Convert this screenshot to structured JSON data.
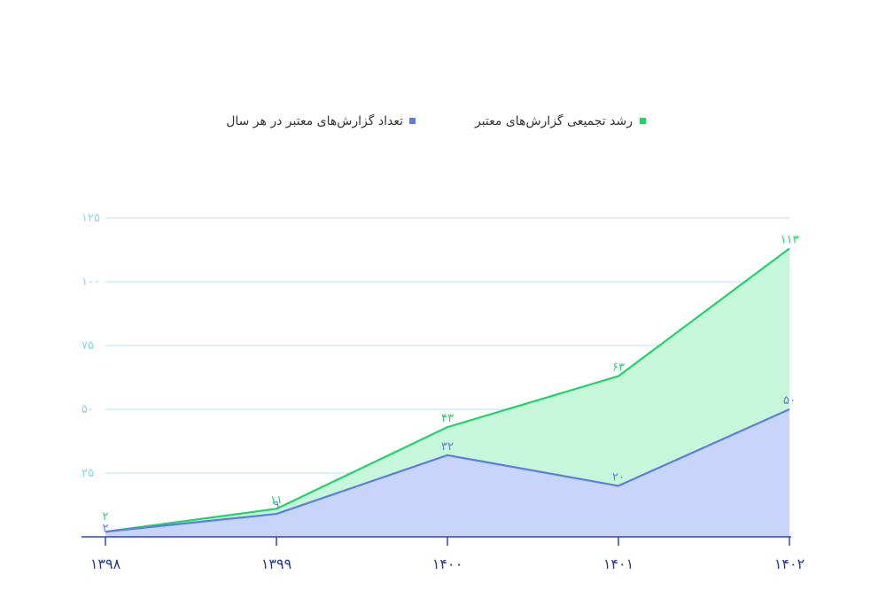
{
  "chart_data": {
    "type": "area",
    "categories": [
      "۱۳۹۸",
      "۱۳۹۹",
      "۱۴۰۰",
      "۱۴۰۱",
      "۱۴۰۲"
    ],
    "series": [
      {
        "name": "رشد تجمیعی گزارش‌های معتبر",
        "values": [
          2,
          11,
          43,
          63,
          113
        ],
        "labels": [
          "۲",
          "۱۱",
          "۴۳",
          "۶۳",
          "۱۱۳"
        ],
        "color": "#22d36b",
        "fill": "#c6f7da"
      },
      {
        "name": "تعداد گزارش‌های معتبر در هر سال",
        "values": [
          2,
          9,
          32,
          20,
          50
        ],
        "labels": [
          "۲",
          "۹",
          "۳۲",
          "۲۰",
          "۵۰"
        ],
        "color": "#5a7de6",
        "fill": "#c9d4fb"
      }
    ],
    "yticks": [
      25,
      50,
      75,
      100,
      125
    ],
    "ytick_labels": [
      "۲۵",
      "۵۰",
      "۷۵",
      "۱۰۰",
      "۱۲۵"
    ],
    "ylim": [
      0,
      125
    ],
    "grid": true,
    "legend_position": "top-center",
    "colors": {
      "grid": "#b3e6f5",
      "axis": "#2a45c8",
      "ytick_text": "#8fd3ea",
      "xtick_text": "#2a3a8c"
    }
  }
}
